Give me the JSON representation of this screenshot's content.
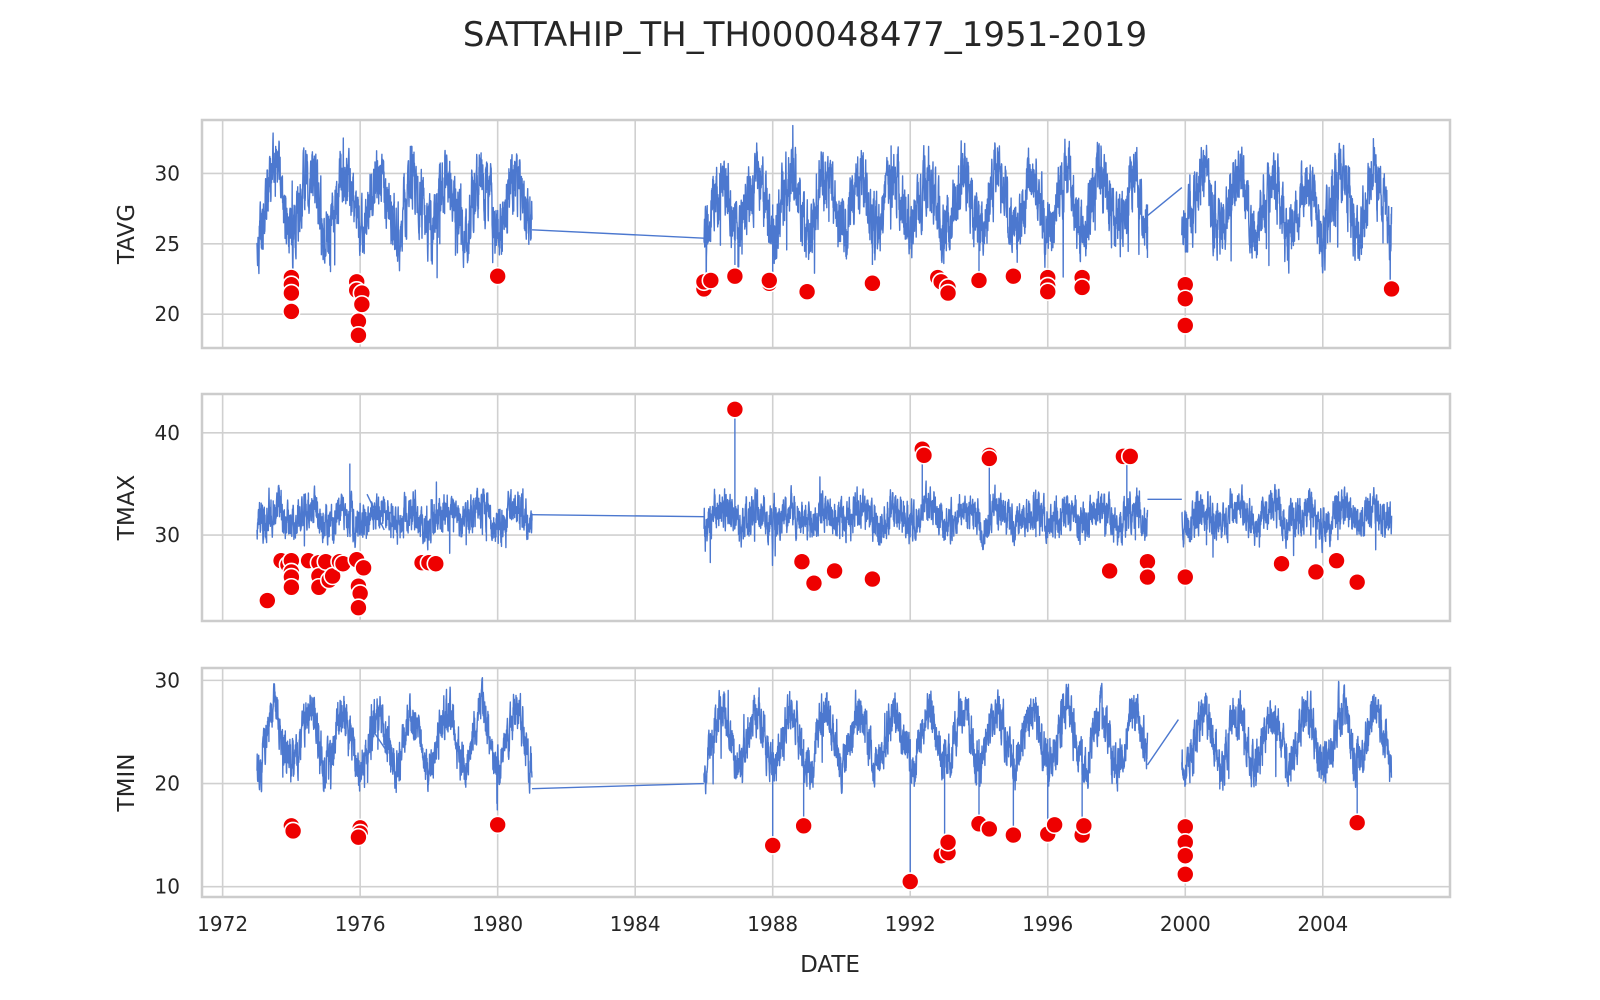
{
  "chart_data": {
    "type": "line",
    "title": "SATTAHIP_TH_TH000048477_1951-2019",
    "xlabel": "DATE",
    "x_ticks": [
      "1972",
      "1976",
      "1980",
      "1984",
      "1988",
      "1992",
      "1996",
      "2000",
      "2004"
    ],
    "xlim": [
      1971.4,
      2007.7
    ],
    "grid": true,
    "line_color": "#4c78cf",
    "outlier_color": "#ee0000",
    "segments": [
      {
        "start": 1973.0,
        "end": 1976.9
      },
      {
        "start": 1976.9,
        "end": 1981.0
      },
      {
        "start": 1986.0,
        "end": 1998.9
      },
      {
        "start": 1999.9,
        "end": 2006.0
      }
    ],
    "panels": [
      {
        "ylabel": "TAVG",
        "ylim": [
          17.6,
          33.8
        ],
        "y_ticks": [
          20,
          25,
          30
        ],
        "mean": 27.8,
        "season_amp": 2.0,
        "noise": 1.7,
        "connectors": [
          [
            1976.9,
            27.0,
            1977.0,
            28.0
          ],
          [
            1981.0,
            26.0,
            1986.0,
            25.4
          ],
          [
            1998.9,
            27.0,
            1999.9,
            29.0
          ]
        ],
        "spikes": [
          [
            1986.9,
            23.5
          ],
          [
            1988.0,
            22.8
          ],
          [
            1990.9,
            23.5
          ],
          [
            1994.0,
            23.0
          ],
          [
            1998.9,
            24.0
          ]
        ],
        "outliers": [
          {
            "x": 1974.0,
            "y": 22.6
          },
          {
            "x": 1974.0,
            "y": 22.1
          },
          {
            "x": 1974.0,
            "y": 21.5
          },
          {
            "x": 1974.0,
            "y": 20.2
          },
          {
            "x": 1975.9,
            "y": 22.3
          },
          {
            "x": 1975.9,
            "y": 21.7
          },
          {
            "x": 1976.05,
            "y": 21.5
          },
          {
            "x": 1976.05,
            "y": 20.7
          },
          {
            "x": 1975.95,
            "y": 19.5
          },
          {
            "x": 1975.95,
            "y": 18.5
          },
          {
            "x": 1980.0,
            "y": 22.7
          },
          {
            "x": 1986.0,
            "y": 21.8
          },
          {
            "x": 1986.0,
            "y": 22.3
          },
          {
            "x": 1986.2,
            "y": 22.4
          },
          {
            "x": 1986.9,
            "y": 22.7
          },
          {
            "x": 1987.9,
            "y": 22.2
          },
          {
            "x": 1987.9,
            "y": 22.4
          },
          {
            "x": 1989.0,
            "y": 21.6
          },
          {
            "x": 1990.9,
            "y": 22.2
          },
          {
            "x": 1992.8,
            "y": 22.6
          },
          {
            "x": 1992.9,
            "y": 22.3
          },
          {
            "x": 1993.1,
            "y": 21.9
          },
          {
            "x": 1993.1,
            "y": 21.5
          },
          {
            "x": 1994.0,
            "y": 22.4
          },
          {
            "x": 1995.0,
            "y": 22.7
          },
          {
            "x": 1996.0,
            "y": 22.6
          },
          {
            "x": 1996.0,
            "y": 22.0
          },
          {
            "x": 1996.0,
            "y": 21.6
          },
          {
            "x": 1997.0,
            "y": 22.6
          },
          {
            "x": 1997.0,
            "y": 21.9
          },
          {
            "x": 2000.0,
            "y": 22.1
          },
          {
            "x": 2000.0,
            "y": 21.1
          },
          {
            "x": 2000.0,
            "y": 19.2
          },
          {
            "x": 2006.0,
            "y": 21.8
          }
        ]
      },
      {
        "ylabel": "TMAX",
        "ylim": [
          21.6,
          43.8
        ],
        "y_ticks": [
          30,
          40
        ],
        "mean": 31.8,
        "season_amp": 0.8,
        "noise": 1.4,
        "connectors": [
          [
            1976.2,
            34.0,
            1976.7,
            30.5
          ],
          [
            1981.0,
            32.0,
            1986.0,
            31.8
          ],
          [
            1998.9,
            33.5,
            1999.9,
            33.5
          ]
        ],
        "spikes": [
          [
            1986.9,
            42.3
          ],
          [
            1992.35,
            38.4
          ],
          [
            1994.3,
            37.6
          ],
          [
            1998.3,
            37.5
          ],
          [
            1975.7,
            37.0
          ]
        ],
        "outliers": [
          {
            "x": 1973.3,
            "y": 23.6
          },
          {
            "x": 1973.7,
            "y": 27.5
          },
          {
            "x": 1973.9,
            "y": 27.1
          },
          {
            "x": 1974.0,
            "y": 27.5
          },
          {
            "x": 1974.0,
            "y": 26.4
          },
          {
            "x": 1974.0,
            "y": 25.9
          },
          {
            "x": 1974.0,
            "y": 24.9
          },
          {
            "x": 1974.5,
            "y": 27.5
          },
          {
            "x": 1974.8,
            "y": 27.3
          },
          {
            "x": 1974.8,
            "y": 26.0
          },
          {
            "x": 1974.8,
            "y": 24.9
          },
          {
            "x": 1975.0,
            "y": 27.4
          },
          {
            "x": 1975.1,
            "y": 25.6
          },
          {
            "x": 1975.2,
            "y": 26.0
          },
          {
            "x": 1975.4,
            "y": 27.4
          },
          {
            "x": 1975.5,
            "y": 27.2
          },
          {
            "x": 1975.9,
            "y": 27.6
          },
          {
            "x": 1976.1,
            "y": 26.8
          },
          {
            "x": 1975.95,
            "y": 25.0
          },
          {
            "x": 1976.0,
            "y": 24.3
          },
          {
            "x": 1975.95,
            "y": 22.9
          },
          {
            "x": 1977.8,
            "y": 27.3
          },
          {
            "x": 1978.0,
            "y": 27.3
          },
          {
            "x": 1978.2,
            "y": 27.2
          },
          {
            "x": 1986.9,
            "y": 42.3
          },
          {
            "x": 1988.85,
            "y": 27.4
          },
          {
            "x": 1989.2,
            "y": 25.3
          },
          {
            "x": 1989.8,
            "y": 26.5
          },
          {
            "x": 1990.9,
            "y": 25.7
          },
          {
            "x": 1992.35,
            "y": 38.4
          },
          {
            "x": 1992.4,
            "y": 37.8
          },
          {
            "x": 1994.3,
            "y": 37.8
          },
          {
            "x": 1994.3,
            "y": 37.5
          },
          {
            "x": 1997.8,
            "y": 26.5
          },
          {
            "x": 1998.2,
            "y": 37.7
          },
          {
            "x": 1998.4,
            "y": 37.7
          },
          {
            "x": 1998.9,
            "y": 27.4
          },
          {
            "x": 1998.9,
            "y": 25.9
          },
          {
            "x": 2000.0,
            "y": 25.9
          },
          {
            "x": 2002.8,
            "y": 27.2
          },
          {
            "x": 2003.8,
            "y": 26.4
          },
          {
            "x": 2004.4,
            "y": 27.5
          },
          {
            "x": 2005.0,
            "y": 25.4
          }
        ]
      },
      {
        "ylabel": "TMIN",
        "ylim": [
          9.0,
          31.2
        ],
        "y_ticks": [
          10,
          20,
          30
        ],
        "mean": 24.3,
        "season_amp": 2.7,
        "noise": 1.6,
        "connectors": [
          [
            1976.4,
            25.0,
            1976.8,
            23.0
          ],
          [
            1981.0,
            19.5,
            1986.0,
            20.0
          ],
          [
            1998.9,
            21.8,
            1999.8,
            26.2
          ]
        ],
        "spikes": [
          [
            1992.0,
            10.5
          ],
          [
            1988.0,
            14.0
          ],
          [
            1988.9,
            16.0
          ],
          [
            1993.0,
            13.0
          ],
          [
            1994.0,
            16.0
          ],
          [
            1995.0,
            15.0
          ],
          [
            1996.0,
            15.0
          ],
          [
            1997.0,
            15.0
          ],
          [
            2005.0,
            16.2
          ]
        ],
        "outliers": [
          {
            "x": 1974.0,
            "y": 15.9
          },
          {
            "x": 1974.05,
            "y": 15.4
          },
          {
            "x": 1976.0,
            "y": 15.7
          },
          {
            "x": 1976.0,
            "y": 15.2
          },
          {
            "x": 1975.95,
            "y": 14.8
          },
          {
            "x": 1980.0,
            "y": 16.0
          },
          {
            "x": 1988.0,
            "y": 14.0
          },
          {
            "x": 1988.9,
            "y": 15.9
          },
          {
            "x": 1992.0,
            "y": 10.5
          },
          {
            "x": 1992.9,
            "y": 13.0
          },
          {
            "x": 1993.1,
            "y": 13.3
          },
          {
            "x": 1993.1,
            "y": 14.3
          },
          {
            "x": 1994.0,
            "y": 16.1
          },
          {
            "x": 1994.3,
            "y": 15.6
          },
          {
            "x": 1995.0,
            "y": 15.0
          },
          {
            "x": 1996.0,
            "y": 15.1
          },
          {
            "x": 1996.2,
            "y": 16.0
          },
          {
            "x": 1997.0,
            "y": 15.0
          },
          {
            "x": 1997.05,
            "y": 15.9
          },
          {
            "x": 2000.0,
            "y": 15.8
          },
          {
            "x": 2000.0,
            "y": 14.3
          },
          {
            "x": 2000.0,
            "y": 13.0
          },
          {
            "x": 2000.0,
            "y": 11.2
          },
          {
            "x": 2005.0,
            "y": 16.2
          }
        ]
      }
    ]
  }
}
